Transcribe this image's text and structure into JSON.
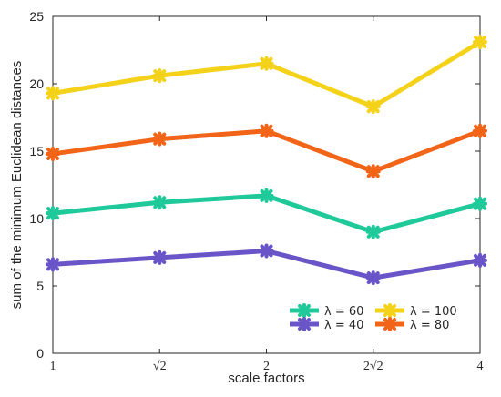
{
  "chart_data": {
    "type": "line",
    "xlabel": "scale factors",
    "ylabel": "sum of the minimum Euclidean distances",
    "categories": [
      "1",
      "√2",
      "2",
      "2√2",
      "4"
    ],
    "ylim": [
      0,
      25
    ],
    "yticks": [
      0,
      5,
      10,
      15,
      20,
      25
    ],
    "grid": false,
    "legend_placement": "bottom-right",
    "series": [
      {
        "name": "λ = 60",
        "color": "#1FC99A",
        "values": [
          10.4,
          11.2,
          11.7,
          9.0,
          11.1
        ]
      },
      {
        "name": "λ = 40",
        "color": "#6A55C8",
        "values": [
          6.6,
          7.1,
          7.6,
          5.6,
          6.9
        ]
      },
      {
        "name": "λ = 100",
        "color": "#F5D21A",
        "values": [
          19.3,
          20.6,
          21.5,
          18.3,
          23.1
        ]
      },
      {
        "name": "λ = 80",
        "color": "#F26418",
        "values": [
          14.8,
          15.9,
          16.5,
          13.5,
          16.5
        ]
      }
    ]
  }
}
